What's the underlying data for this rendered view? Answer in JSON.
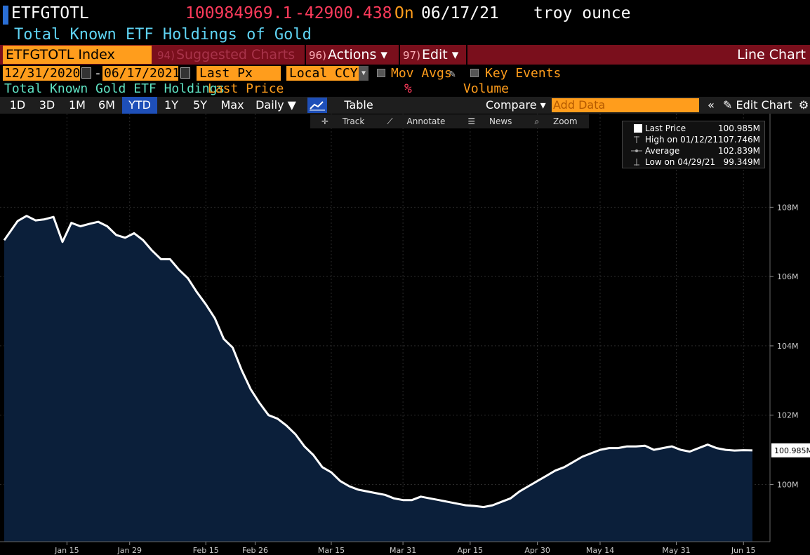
{
  "header": {
    "ticker": "ETFGTOTL",
    "last_value": "100984969.1",
    "change": "-42900.438",
    "on_label": "On",
    "date": "06/17/21",
    "unit": "troy ounce",
    "description": "Total Known ETF Holdings of Gold"
  },
  "toolbar": {
    "security": "ETFGTOTL Index",
    "suggested_num": "94)",
    "suggested_label": "Suggested Charts",
    "actions_num": "96)",
    "actions_label": "Actions ▾",
    "edit_num": "97)",
    "edit_label": "Edit ▾",
    "chart_type": "Line Chart"
  },
  "range": {
    "start": "12/31/2020",
    "dash": "-",
    "end": "06/17/2021",
    "field": "Last Px",
    "currency": "Local CCY",
    "mov_avgs": "Mov Avgs",
    "key_events": "Key Events"
  },
  "legend_row": {
    "name": "Total Known Gold ETF Holdings",
    "last_price": "Last Price",
    "pct": "%",
    "volume": "Volume"
  },
  "periods": [
    "1D",
    "3D",
    "1M",
    "6M",
    "YTD",
    "1Y",
    "5Y",
    "Max"
  ],
  "active_period": "YTD",
  "frequency": "Daily ▼",
  "table_label": "Table",
  "compare_label": "Compare ▾",
  "add_data_placeholder": "Add Data",
  "collapse_label": "«",
  "edit_chart_label": "Edit Chart",
  "tools": [
    "Track",
    "Annotate",
    "News",
    "Zoom"
  ],
  "legend_box": {
    "last_price_label": "Last Price",
    "last_price_value": "100.985M",
    "high_label": "High on 01/12/21",
    "high_value": "107.746M",
    "average_label": "Average",
    "average_value": "102.839M",
    "low_label": "Low on 04/29/21",
    "low_value": "99.349M"
  },
  "colors": {
    "line": "#ffffff",
    "area": "#0b1f3a",
    "accent_orange": "#ff9d1c",
    "negative": "#ff3b5c",
    "header_cyan": "#5fd4f4"
  },
  "chart_data": {
    "type": "area",
    "ylabel": "",
    "y_ticks": [
      "108M",
      "106M",
      "104M",
      "102M",
      "100M"
    ],
    "y_tick_values": [
      108,
      106,
      104,
      102,
      100
    ],
    "ylim": [
      98.35,
      110.7
    ],
    "x_tick_labels": [
      "Jan 15",
      "Jan 29",
      "Feb 15",
      "Feb 26",
      "Mar 15",
      "Mar 31",
      "Apr 15",
      "Apr 30",
      "May 14",
      "May 31",
      "Jun 15"
    ],
    "x_tick_days": [
      14,
      28,
      45,
      56,
      73,
      89,
      104,
      119,
      133,
      150,
      165
    ],
    "last_label": "100.985M",
    "x_days": [
      0,
      3,
      5,
      7,
      9,
      11,
      13,
      15,
      17,
      19,
      21,
      23,
      25,
      27,
      29,
      31,
      33,
      35,
      37,
      39,
      41,
      43,
      45,
      47,
      49,
      51,
      53,
      55,
      57,
      59,
      61,
      63,
      65,
      67,
      69,
      71,
      73,
      75,
      77,
      79,
      81,
      83,
      85,
      87,
      89,
      91,
      93,
      95,
      97,
      99,
      101,
      103,
      105,
      107,
      109,
      111,
      113,
      115,
      117,
      119,
      121,
      123,
      125,
      127,
      129,
      131,
      133,
      135,
      137,
      139,
      141,
      143,
      145,
      147,
      149,
      151,
      153,
      155,
      157,
      159,
      161,
      163,
      165,
      167
    ],
    "values": [
      107.05,
      107.6,
      107.75,
      107.62,
      107.65,
      107.72,
      107.0,
      107.55,
      107.45,
      107.52,
      107.58,
      107.45,
      107.2,
      107.12,
      107.25,
      107.05,
      106.75,
      106.5,
      106.5,
      106.2,
      105.95,
      105.55,
      105.2,
      104.8,
      104.2,
      103.95,
      103.3,
      102.75,
      102.35,
      102.0,
      101.9,
      101.7,
      101.45,
      101.1,
      100.85,
      100.5,
      100.35,
      100.1,
      99.95,
      99.85,
      99.8,
      99.75,
      99.7,
      99.6,
      99.55,
      99.55,
      99.65,
      99.6,
      99.55,
      99.5,
      99.45,
      99.4,
      99.38,
      99.35,
      99.4,
      99.5,
      99.6,
      99.8,
      99.95,
      100.1,
      100.25,
      100.4,
      100.5,
      100.65,
      100.8,
      100.9,
      101.0,
      101.05,
      101.05,
      101.1,
      101.1,
      101.12,
      101.0,
      101.05,
      101.1,
      101.0,
      100.95,
      101.05,
      101.15,
      101.05,
      101.0,
      100.98,
      100.99,
      100.985
    ]
  }
}
